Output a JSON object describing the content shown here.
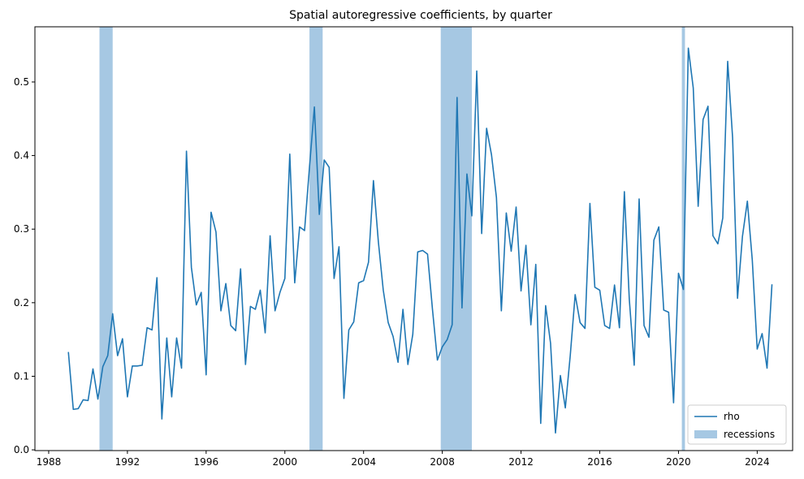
{
  "colors": {
    "series": "#1f77b4",
    "recession": "#a6c8e3",
    "axis": "#000000",
    "background": "#ffffff"
  },
  "chart_data": {
    "type": "line",
    "title": "Spatial autoregressive coefficients, by quarter",
    "xlabel": "",
    "ylabel": "",
    "xlim": [
      1987.3,
      2025.8
    ],
    "ylim": [
      -0.001,
      0.575
    ],
    "xticks": [
      1988,
      1992,
      1996,
      2000,
      2004,
      2008,
      2012,
      2016,
      2020,
      2024
    ],
    "yticks": [
      0.0,
      0.1,
      0.2,
      0.3,
      0.4,
      0.5
    ],
    "grid": false,
    "legend_position": "lower-right",
    "legend": [
      {
        "label": "rho",
        "kind": "line"
      },
      {
        "label": "recessions",
        "kind": "patch"
      }
    ],
    "recessions": [
      {
        "start": 1990.58,
        "end": 1991.25
      },
      {
        "start": 2001.25,
        "end": 2001.92
      },
      {
        "start": 2007.92,
        "end": 2009.5
      },
      {
        "start": 2020.17,
        "end": 2020.33
      }
    ],
    "series": [
      {
        "name": "rho",
        "x_start": 1989.0,
        "x_step": 0.25,
        "values": [
          0.133,
          0.055,
          0.056,
          0.068,
          0.067,
          0.11,
          0.069,
          0.113,
          0.128,
          0.185,
          0.128,
          0.151,
          0.072,
          0.114,
          0.114,
          0.115,
          0.166,
          0.163,
          0.234,
          0.042,
          0.152,
          0.072,
          0.152,
          0.111,
          0.406,
          0.248,
          0.197,
          0.214,
          0.102,
          0.323,
          0.296,
          0.189,
          0.226,
          0.169,
          0.162,
          0.246,
          0.116,
          0.195,
          0.191,
          0.217,
          0.159,
          0.291,
          0.189,
          0.214,
          0.233,
          0.402,
          0.227,
          0.303,
          0.298,
          0.384,
          0.466,
          0.32,
          0.394,
          0.384,
          0.233,
          0.276,
          0.07,
          0.163,
          0.174,
          0.227,
          0.23,
          0.255,
          0.366,
          0.283,
          0.217,
          0.173,
          0.154,
          0.119,
          0.191,
          0.116,
          0.157,
          0.269,
          0.271,
          0.266,
          0.191,
          0.122,
          0.14,
          0.15,
          0.17,
          0.479,
          0.193,
          0.375,
          0.318,
          0.515,
          0.294,
          0.437,
          0.401,
          0.343,
          0.189,
          0.322,
          0.27,
          0.33,
          0.216,
          0.278,
          0.17,
          0.252,
          0.036,
          0.196,
          0.145,
          0.023,
          0.101,
          0.057,
          0.128,
          0.211,
          0.173,
          0.165,
          0.335,
          0.221,
          0.217,
          0.169,
          0.165,
          0.224,
          0.166,
          0.351,
          0.205,
          0.115,
          0.341,
          0.169,
          0.153,
          0.285,
          0.303,
          0.19,
          0.187,
          0.064,
          0.24,
          0.218,
          0.546,
          0.492,
          0.331,
          0.449,
          0.467,
          0.291,
          0.28,
          0.315,
          0.528,
          0.424,
          0.206,
          0.29,
          0.338,
          0.258,
          0.137,
          0.158,
          0.111,
          0.225
        ]
      }
    ]
  }
}
